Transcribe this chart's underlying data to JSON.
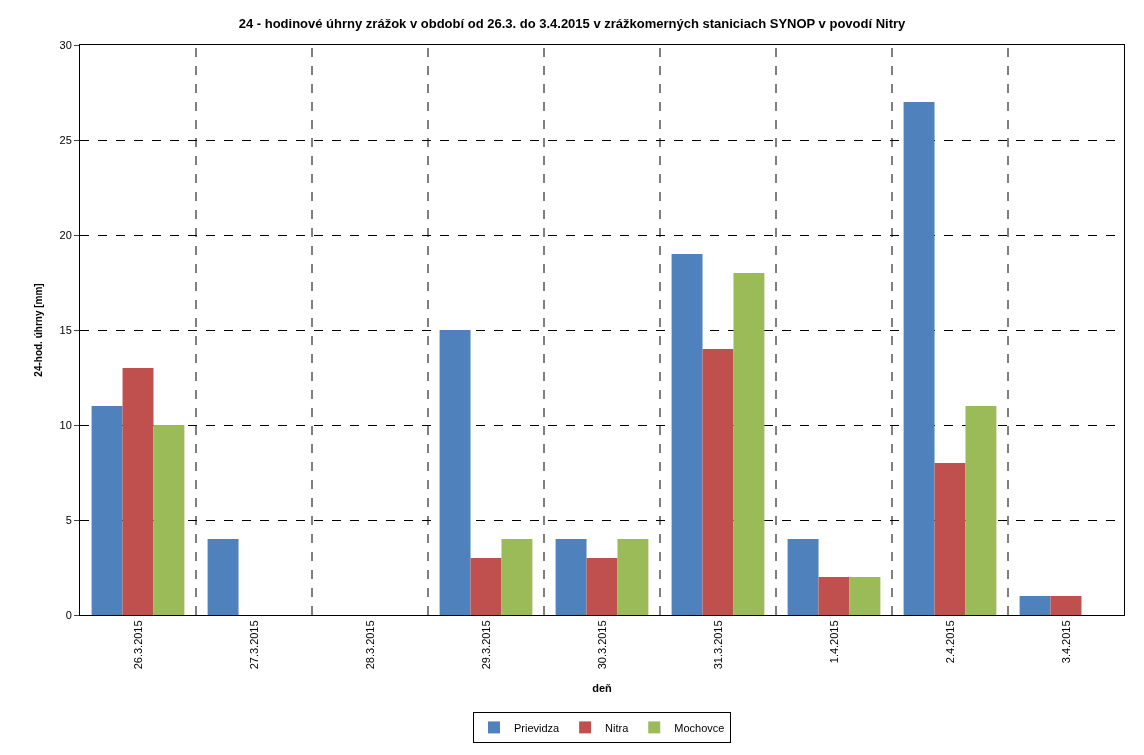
{
  "chart_data": {
    "type": "bar",
    "title": "24 - hodinové úhrny zrážok v období od 26.3. do 3.4.2015 v zrážkomerných staniciach SYNOP v povodí Nitry",
    "xlabel": "deň",
    "ylabel": "24-hod. úhrny [mm]",
    "categories": [
      "26.3.2015",
      "27.3.2015",
      "28.3.2015",
      "29.3.2015",
      "30.3.2015",
      "31.3.2015",
      "1.4.2015",
      "2.4.2015",
      "3.4.2015"
    ],
    "series": [
      {
        "name": "Prievidza",
        "color": "#4f81bd",
        "values": [
          11,
          4,
          0,
          15,
          4,
          19,
          4,
          27,
          1
        ]
      },
      {
        "name": "Nitra",
        "color": "#c0504d",
        "values": [
          13,
          0,
          0,
          3,
          3,
          14,
          2,
          8,
          1
        ]
      },
      {
        "name": "Mochovce",
        "color": "#9bbb59",
        "values": [
          10,
          0,
          0,
          4,
          4,
          18,
          2,
          11,
          0
        ]
      }
    ],
    "ylim": [
      0,
      30
    ],
    "yticks": [
      0,
      5,
      10,
      15,
      20,
      25,
      30
    ],
    "grid": true,
    "legend": "bottom"
  }
}
